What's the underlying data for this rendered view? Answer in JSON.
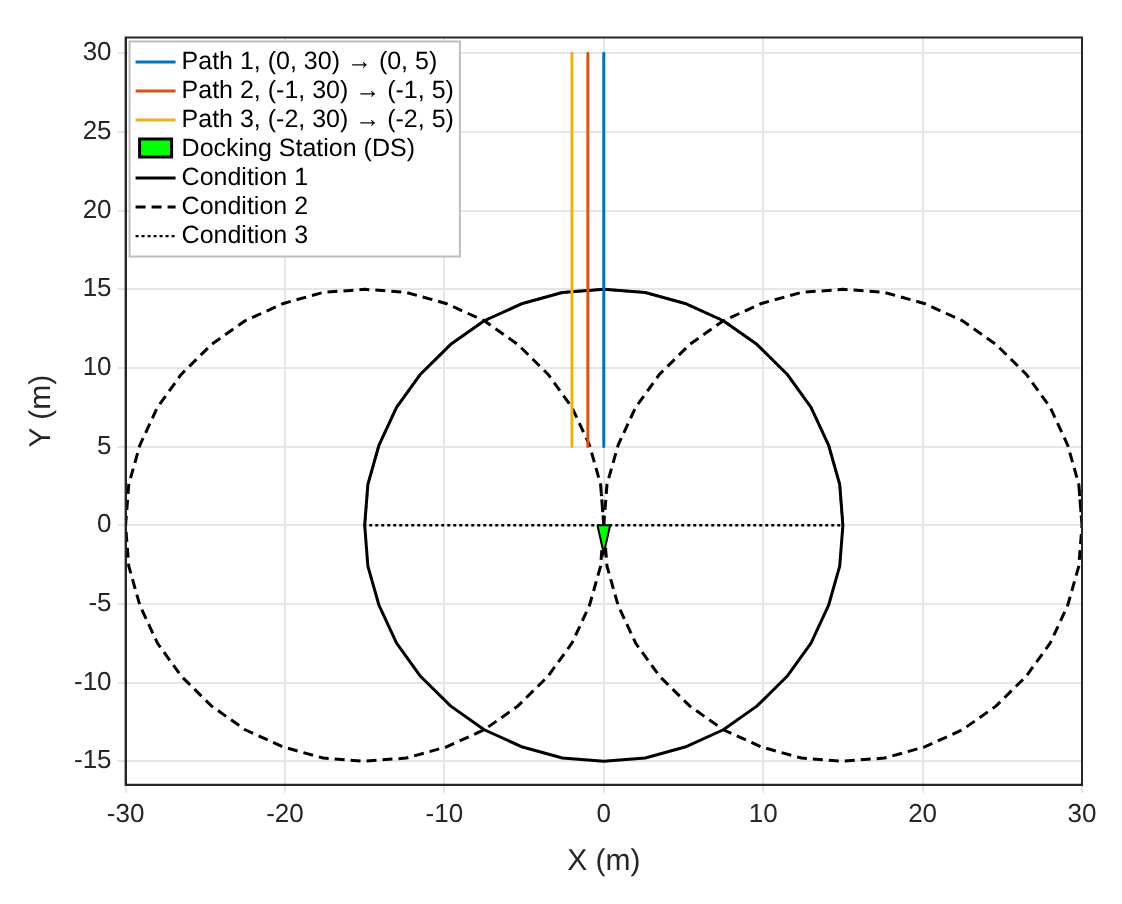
{
  "chart_data": {
    "type": "line",
    "xlabel": "X (m)",
    "ylabel": "Y (m)",
    "xlim": [
      -30,
      30
    ],
    "xticks": [
      -30,
      -20,
      -10,
      0,
      10,
      20,
      30
    ],
    "ylim": [
      -16.5,
      31
    ],
    "yticks": [
      -15,
      -10,
      -5,
      0,
      5,
      10,
      15,
      20,
      25,
      30
    ],
    "grid": true,
    "legend": "top left",
    "series": [
      {
        "name": "Path 1, (0, 30) → (0, 5)",
        "color": "#0072bd",
        "line_style": "solid",
        "x": [
          0,
          0
        ],
        "values": [
          30,
          5
        ]
      },
      {
        "name": "Path 2, (-1, 30) → (-1, 5)",
        "color": "#d95319",
        "line_style": "solid",
        "x": [
          -1,
          -1
        ],
        "values": [
          30,
          5
        ]
      },
      {
        "name": "Path 3, (-2, 30) → (-2, 5)",
        "color": "#edb120",
        "line_style": "solid",
        "x": [
          -2,
          -2
        ],
        "values": [
          30,
          5
        ]
      },
      {
        "name": "Docking Station (DS)",
        "type": "area",
        "color": "#00ff00",
        "x": [
          -0.4,
          0.4,
          0,
          -0.4
        ],
        "values": [
          0,
          0,
          -1.8,
          0
        ]
      },
      {
        "name": "Condition 1",
        "color": "#000000",
        "line_style": "solid",
        "x": [
          15,
          14.8,
          14.1,
          13,
          11.5,
          9.6,
          7.5,
          5.1,
          2.6,
          0,
          -2.6,
          -5.1,
          -7.5,
          -9.6,
          -11.5,
          -13,
          -14.1,
          -14.8,
          -15,
          -14.8,
          -14.1,
          -13,
          -11.5,
          -9.6,
          -7.5,
          -5.1,
          -2.6,
          0,
          2.6,
          5.1,
          7.5,
          9.6,
          11.5,
          13,
          14.1,
          14.8,
          15,
          14.8
        ],
        "values": [
          0,
          2.6,
          5.1,
          7.5,
          9.6,
          11.5,
          13,
          14.1,
          14.8,
          15,
          14.8,
          14.1,
          13,
          11.5,
          9.6,
          7.5,
          5.1,
          2.6,
          0,
          -2.6,
          -5.1,
          -7.5,
          -9.6,
          -11.5,
          -13,
          -14.1,
          -14.8,
          -15,
          -14.8,
          -14.1,
          -13,
          -11.5,
          -9.6,
          -7.5,
          -5.1,
          -2.6,
          0,
          2.6
        ]
      },
      {
        "name": "Condition 2",
        "color": "#000000",
        "line_style": "dashed",
        "x": [
          0,
          -0.2,
          -0.9,
          -2,
          -3.5,
          -5.4,
          -7.5,
          -9.9,
          -12.4,
          -15,
          -17.6,
          -20.1,
          -22.5,
          -24.6,
          -26.5,
          -28,
          -29.1,
          -29.8,
          -30,
          -29.8,
          -29.1,
          -28,
          -26.5,
          -24.6,
          -22.5,
          -20.1,
          -17.6,
          -15,
          -12.4,
          -9.9,
          -7.5,
          -5.4,
          -3.5,
          -2,
          -0.9,
          -0.2,
          0,
          -0.2
        ],
        "values": [
          0,
          2.6,
          5.1,
          7.5,
          9.6,
          11.5,
          13,
          14.1,
          14.8,
          15,
          14.8,
          14.1,
          13,
          11.5,
          9.6,
          7.5,
          5.1,
          2.6,
          0,
          -2.6,
          -5.1,
          -7.5,
          -9.6,
          -11.5,
          -13,
          -14.1,
          -14.8,
          -15,
          -14.8,
          -14.1,
          -13,
          -11.5,
          -9.6,
          -7.5,
          -5.1,
          -2.6,
          0,
          2.6
        ]
      },
      {
        "color": "#000000",
        "line_style": "dashed",
        "x": [
          30,
          29.8,
          29.1,
          28,
          26.5,
          24.6,
          22.5,
          20.1,
          17.6,
          15,
          12.4,
          9.9,
          7.5,
          5.4,
          3.5,
          2,
          0.9,
          0.2,
          0,
          0.2,
          0.9,
          2,
          3.5,
          5.4,
          7.5,
          9.9,
          12.4,
          15,
          17.6,
          20.1,
          22.5,
          24.6,
          26.5,
          28,
          29.1,
          29.8,
          30,
          29.8
        ],
        "values": [
          0,
          2.6,
          5.1,
          7.5,
          9.6,
          11.5,
          13,
          14.1,
          14.8,
          15,
          14.8,
          14.1,
          13,
          11.5,
          9.6,
          7.5,
          5.1,
          2.6,
          0,
          -2.6,
          -5.1,
          -7.5,
          -9.6,
          -11.5,
          -13,
          -14.1,
          -14.8,
          -15,
          -14.8,
          -14.1,
          -13,
          -11.5,
          -9.6,
          -7.5,
          -5.1,
          -2.6,
          0,
          2.6
        ]
      },
      {
        "name": "Condition 3",
        "color": "#000000",
        "line_style": "dotted",
        "x": [
          15,
          14.8,
          14.1,
          13,
          11.5,
          9.6,
          7.5,
          5.1,
          2.6,
          0,
          -2.6,
          -5.1,
          -7.5,
          -9.6,
          -11.5,
          -13,
          -14.1,
          -14.8,
          -15,
          15,
          14.8
        ],
        "values": [
          0,
          2.6,
          5.1,
          7.5,
          9.6,
          11.5,
          13,
          14.1,
          14.8,
          15,
          14.8,
          14.1,
          13,
          11.5,
          9.6,
          7.5,
          5.1,
          2.6,
          0,
          0,
          2.6
        ]
      }
    ]
  }
}
